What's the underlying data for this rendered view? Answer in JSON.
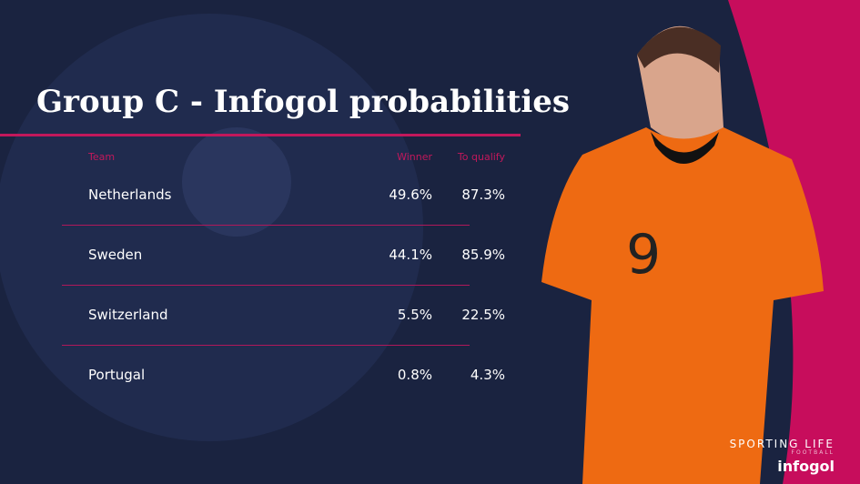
{
  "header": {
    "title": "Group C - Infogol probabilities"
  },
  "table": {
    "columns": [
      "Team",
      "Winner",
      "To qualify"
    ],
    "rows": [
      [
        "Netherlands",
        "49.6%",
        "87.3%"
      ],
      [
        "Sweden",
        "44.1%",
        "85.9%"
      ],
      [
        "Switzerland",
        "5.5%",
        "22.5%"
      ],
      [
        "Portugal",
        "0.8%",
        "4.3%"
      ]
    ]
  },
  "branding": {
    "name": "SPORTING LIFE",
    "sub": "FOOTBALL",
    "partner": "infogol"
  }
}
